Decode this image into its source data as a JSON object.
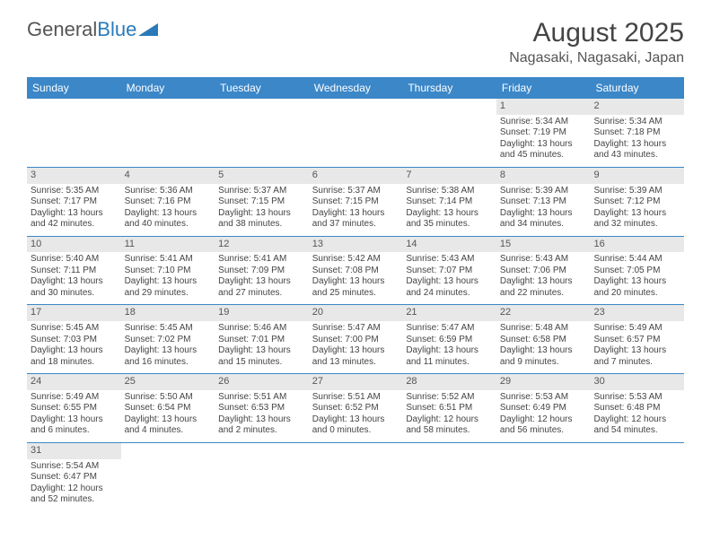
{
  "logo": {
    "text1": "General",
    "text2": "Blue"
  },
  "title": "August 2025",
  "location": "Nagasaki, Nagasaki, Japan",
  "colors": {
    "header_bg": "#3b87c8",
    "header_text": "#ffffff",
    "daynum_bg": "#e8e8e8",
    "border": "#3b87c8",
    "text": "#444444"
  },
  "day_names": [
    "Sunday",
    "Monday",
    "Tuesday",
    "Wednesday",
    "Thursday",
    "Friday",
    "Saturday"
  ],
  "weeks": [
    [
      {
        "empty": true
      },
      {
        "empty": true
      },
      {
        "empty": true
      },
      {
        "empty": true
      },
      {
        "empty": true
      },
      {
        "n": "1",
        "sr": "Sunrise: 5:34 AM",
        "ss": "Sunset: 7:19 PM",
        "dl1": "Daylight: 13 hours",
        "dl2": "and 45 minutes."
      },
      {
        "n": "2",
        "sr": "Sunrise: 5:34 AM",
        "ss": "Sunset: 7:18 PM",
        "dl1": "Daylight: 13 hours",
        "dl2": "and 43 minutes."
      }
    ],
    [
      {
        "n": "3",
        "sr": "Sunrise: 5:35 AM",
        "ss": "Sunset: 7:17 PM",
        "dl1": "Daylight: 13 hours",
        "dl2": "and 42 minutes."
      },
      {
        "n": "4",
        "sr": "Sunrise: 5:36 AM",
        "ss": "Sunset: 7:16 PM",
        "dl1": "Daylight: 13 hours",
        "dl2": "and 40 minutes."
      },
      {
        "n": "5",
        "sr": "Sunrise: 5:37 AM",
        "ss": "Sunset: 7:15 PM",
        "dl1": "Daylight: 13 hours",
        "dl2": "and 38 minutes."
      },
      {
        "n": "6",
        "sr": "Sunrise: 5:37 AM",
        "ss": "Sunset: 7:15 PM",
        "dl1": "Daylight: 13 hours",
        "dl2": "and 37 minutes."
      },
      {
        "n": "7",
        "sr": "Sunrise: 5:38 AM",
        "ss": "Sunset: 7:14 PM",
        "dl1": "Daylight: 13 hours",
        "dl2": "and 35 minutes."
      },
      {
        "n": "8",
        "sr": "Sunrise: 5:39 AM",
        "ss": "Sunset: 7:13 PM",
        "dl1": "Daylight: 13 hours",
        "dl2": "and 34 minutes."
      },
      {
        "n": "9",
        "sr": "Sunrise: 5:39 AM",
        "ss": "Sunset: 7:12 PM",
        "dl1": "Daylight: 13 hours",
        "dl2": "and 32 minutes."
      }
    ],
    [
      {
        "n": "10",
        "sr": "Sunrise: 5:40 AM",
        "ss": "Sunset: 7:11 PM",
        "dl1": "Daylight: 13 hours",
        "dl2": "and 30 minutes."
      },
      {
        "n": "11",
        "sr": "Sunrise: 5:41 AM",
        "ss": "Sunset: 7:10 PM",
        "dl1": "Daylight: 13 hours",
        "dl2": "and 29 minutes."
      },
      {
        "n": "12",
        "sr": "Sunrise: 5:41 AM",
        "ss": "Sunset: 7:09 PM",
        "dl1": "Daylight: 13 hours",
        "dl2": "and 27 minutes."
      },
      {
        "n": "13",
        "sr": "Sunrise: 5:42 AM",
        "ss": "Sunset: 7:08 PM",
        "dl1": "Daylight: 13 hours",
        "dl2": "and 25 minutes."
      },
      {
        "n": "14",
        "sr": "Sunrise: 5:43 AM",
        "ss": "Sunset: 7:07 PM",
        "dl1": "Daylight: 13 hours",
        "dl2": "and 24 minutes."
      },
      {
        "n": "15",
        "sr": "Sunrise: 5:43 AM",
        "ss": "Sunset: 7:06 PM",
        "dl1": "Daylight: 13 hours",
        "dl2": "and 22 minutes."
      },
      {
        "n": "16",
        "sr": "Sunrise: 5:44 AM",
        "ss": "Sunset: 7:05 PM",
        "dl1": "Daylight: 13 hours",
        "dl2": "and 20 minutes."
      }
    ],
    [
      {
        "n": "17",
        "sr": "Sunrise: 5:45 AM",
        "ss": "Sunset: 7:03 PM",
        "dl1": "Daylight: 13 hours",
        "dl2": "and 18 minutes."
      },
      {
        "n": "18",
        "sr": "Sunrise: 5:45 AM",
        "ss": "Sunset: 7:02 PM",
        "dl1": "Daylight: 13 hours",
        "dl2": "and 16 minutes."
      },
      {
        "n": "19",
        "sr": "Sunrise: 5:46 AM",
        "ss": "Sunset: 7:01 PM",
        "dl1": "Daylight: 13 hours",
        "dl2": "and 15 minutes."
      },
      {
        "n": "20",
        "sr": "Sunrise: 5:47 AM",
        "ss": "Sunset: 7:00 PM",
        "dl1": "Daylight: 13 hours",
        "dl2": "and 13 minutes."
      },
      {
        "n": "21",
        "sr": "Sunrise: 5:47 AM",
        "ss": "Sunset: 6:59 PM",
        "dl1": "Daylight: 13 hours",
        "dl2": "and 11 minutes."
      },
      {
        "n": "22",
        "sr": "Sunrise: 5:48 AM",
        "ss": "Sunset: 6:58 PM",
        "dl1": "Daylight: 13 hours",
        "dl2": "and 9 minutes."
      },
      {
        "n": "23",
        "sr": "Sunrise: 5:49 AM",
        "ss": "Sunset: 6:57 PM",
        "dl1": "Daylight: 13 hours",
        "dl2": "and 7 minutes."
      }
    ],
    [
      {
        "n": "24",
        "sr": "Sunrise: 5:49 AM",
        "ss": "Sunset: 6:55 PM",
        "dl1": "Daylight: 13 hours",
        "dl2": "and 6 minutes."
      },
      {
        "n": "25",
        "sr": "Sunrise: 5:50 AM",
        "ss": "Sunset: 6:54 PM",
        "dl1": "Daylight: 13 hours",
        "dl2": "and 4 minutes."
      },
      {
        "n": "26",
        "sr": "Sunrise: 5:51 AM",
        "ss": "Sunset: 6:53 PM",
        "dl1": "Daylight: 13 hours",
        "dl2": "and 2 minutes."
      },
      {
        "n": "27",
        "sr": "Sunrise: 5:51 AM",
        "ss": "Sunset: 6:52 PM",
        "dl1": "Daylight: 13 hours",
        "dl2": "and 0 minutes."
      },
      {
        "n": "28",
        "sr": "Sunrise: 5:52 AM",
        "ss": "Sunset: 6:51 PM",
        "dl1": "Daylight: 12 hours",
        "dl2": "and 58 minutes."
      },
      {
        "n": "29",
        "sr": "Sunrise: 5:53 AM",
        "ss": "Sunset: 6:49 PM",
        "dl1": "Daylight: 12 hours",
        "dl2": "and 56 minutes."
      },
      {
        "n": "30",
        "sr": "Sunrise: 5:53 AM",
        "ss": "Sunset: 6:48 PM",
        "dl1": "Daylight: 12 hours",
        "dl2": "and 54 minutes."
      }
    ],
    [
      {
        "n": "31",
        "sr": "Sunrise: 5:54 AM",
        "ss": "Sunset: 6:47 PM",
        "dl1": "Daylight: 12 hours",
        "dl2": "and 52 minutes."
      },
      {
        "empty": true
      },
      {
        "empty": true
      },
      {
        "empty": true
      },
      {
        "empty": true
      },
      {
        "empty": true
      },
      {
        "empty": true
      }
    ]
  ]
}
